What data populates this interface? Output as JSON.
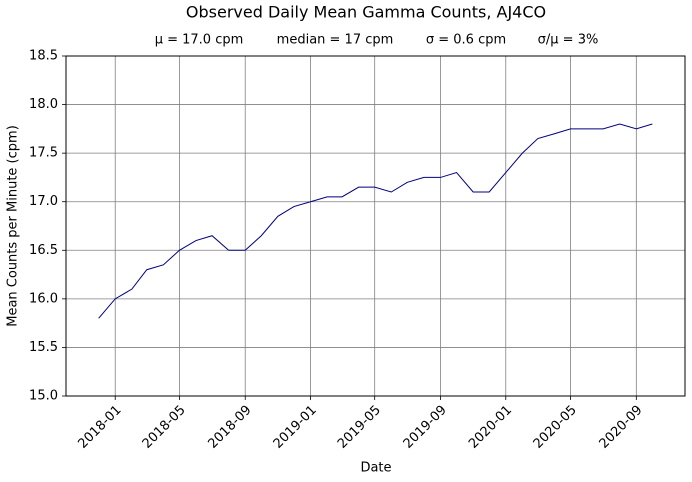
{
  "chart_data": {
    "type": "line",
    "title": "Observed Daily Mean Gamma Counts, AJ4CO",
    "subtitle": [
      "μ = 17.0 cpm",
      "median = 17 cpm",
      "σ = 0.6 cpm",
      "σ/μ = 3%"
    ],
    "x_label": "Date",
    "y_label": "Mean Counts per Minute (cpm)",
    "x": [
      "2017-12",
      "2018-01",
      "2018-02",
      "2018-03",
      "2018-04",
      "2018-05",
      "2018-06",
      "2018-07",
      "2018-08",
      "2018-09",
      "2018-10",
      "2018-11",
      "2018-12",
      "2019-01",
      "2019-02",
      "2019-03",
      "2019-04",
      "2019-05",
      "2019-06",
      "2019-07",
      "2019-08",
      "2019-09",
      "2019-10",
      "2019-11",
      "2019-12",
      "2020-01",
      "2020-02",
      "2020-03",
      "2020-04",
      "2020-05",
      "2020-06",
      "2020-07",
      "2020-08",
      "2020-09",
      "2020-10"
    ],
    "series": [
      {
        "color": "#000080",
        "values": [
          15.8,
          16.0,
          16.1,
          16.3,
          16.35,
          16.5,
          16.6,
          16.65,
          16.5,
          16.5,
          16.65,
          16.85,
          16.95,
          17.0,
          17.05,
          17.05,
          17.15,
          17.15,
          17.1,
          17.2,
          17.25,
          17.25,
          17.3,
          17.1,
          17.1,
          17.3,
          17.5,
          17.65,
          17.7,
          17.75,
          17.75,
          17.75,
          17.8,
          17.75,
          17.8
        ]
      }
    ],
    "xlim": [
      "2017-10",
      "2020-12"
    ],
    "xticks": [
      "2018-01",
      "2018-05",
      "2018-09",
      "2019-01",
      "2019-05",
      "2019-09",
      "2020-01",
      "2020-05",
      "2020-09"
    ],
    "ylim": [
      15,
      18.5
    ],
    "yticks": [
      {
        "value": 15,
        "label": "15.0"
      },
      15.5,
      {
        "value": 16,
        "label": "16.0"
      },
      16.5,
      {
        "value": 17,
        "label": "17.0"
      },
      17.5,
      {
        "value": 18,
        "label": "18.0"
      },
      18.5
    ],
    "grid": true
  }
}
